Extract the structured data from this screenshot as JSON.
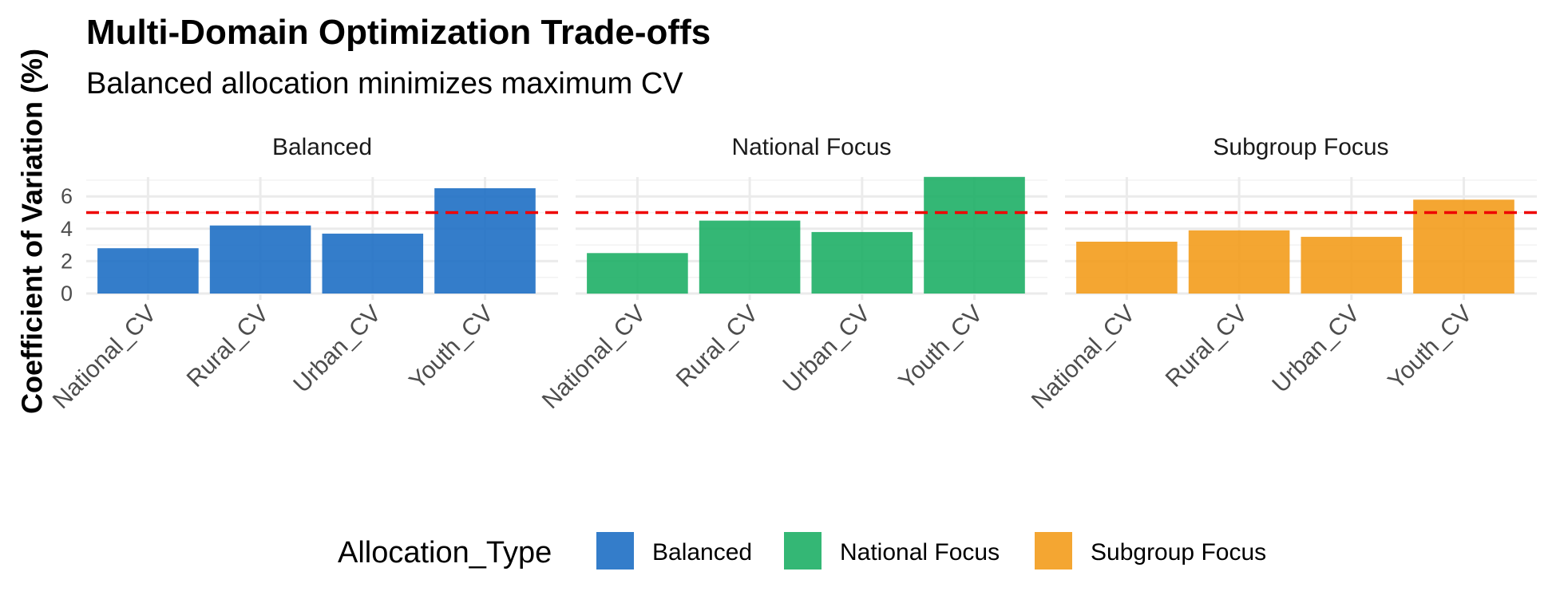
{
  "chart_data": {
    "type": "bar",
    "title": "Multi-Domain Optimization Trade-offs",
    "subtitle": "Balanced allocation minimizes maximum CV",
    "xlabel": "",
    "ylabel": "Coefficient of Variation (%)",
    "ylim": [
      0,
      7.2
    ],
    "yticks": [
      0,
      2,
      4,
      6
    ],
    "grid": true,
    "reference_line": {
      "y": 5,
      "style": "dashed",
      "color": "#ee0000"
    },
    "categories": [
      "National_CV",
      "Rural_CV",
      "Urban_CV",
      "Youth_CV"
    ],
    "series": [
      {
        "name": "Balanced",
        "color": "#1e6fc4",
        "values": [
          2.8,
          4.2,
          3.7,
          6.5
        ]
      },
      {
        "name": "National Focus",
        "color": "#1eaf66",
        "values": [
          2.5,
          4.5,
          3.8,
          7.2
        ]
      },
      {
        "name": "Subgroup Focus",
        "color": "#f39c1c",
        "values": [
          3.2,
          3.9,
          3.5,
          5.8
        ]
      }
    ],
    "legend": {
      "title": "Allocation_Type",
      "position": "bottom"
    }
  }
}
